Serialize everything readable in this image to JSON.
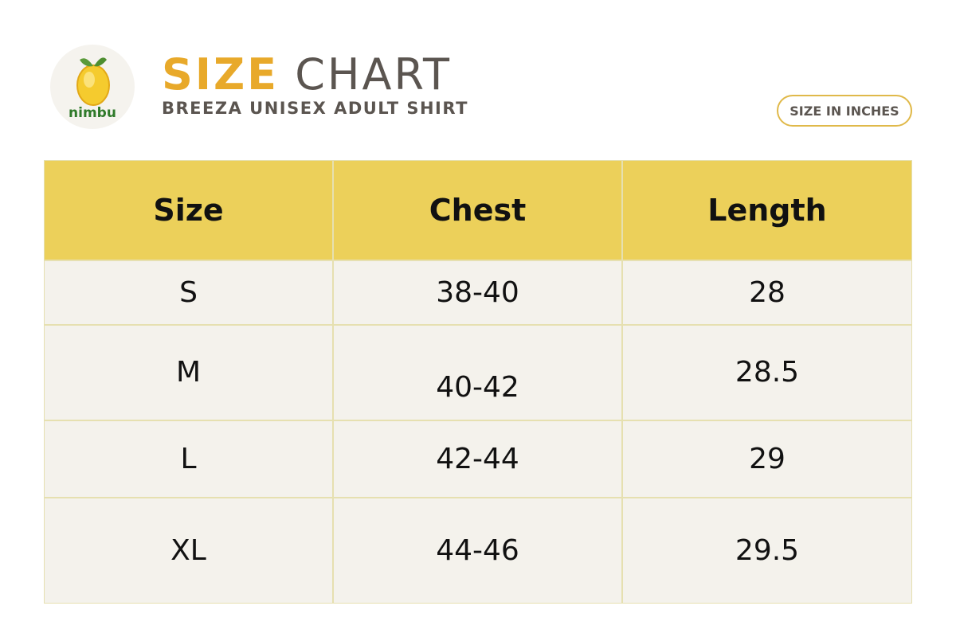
{
  "header": {
    "logo_text": "nimbu",
    "title_highlight": "SIZE",
    "title_rest": "CHART",
    "subtitle": "BREEZA UNISEX ADULT SHIRT",
    "badge": "SIZE IN INCHES"
  },
  "table": {
    "columns": [
      "Size",
      "Chest",
      "Length"
    ],
    "rows": [
      [
        "S",
        "38-40",
        "28"
      ],
      [
        "M",
        "40-42",
        "28.5"
      ],
      [
        "L",
        "42-44",
        "29"
      ],
      [
        "XL",
        "44-46",
        "29.5"
      ]
    ]
  }
}
